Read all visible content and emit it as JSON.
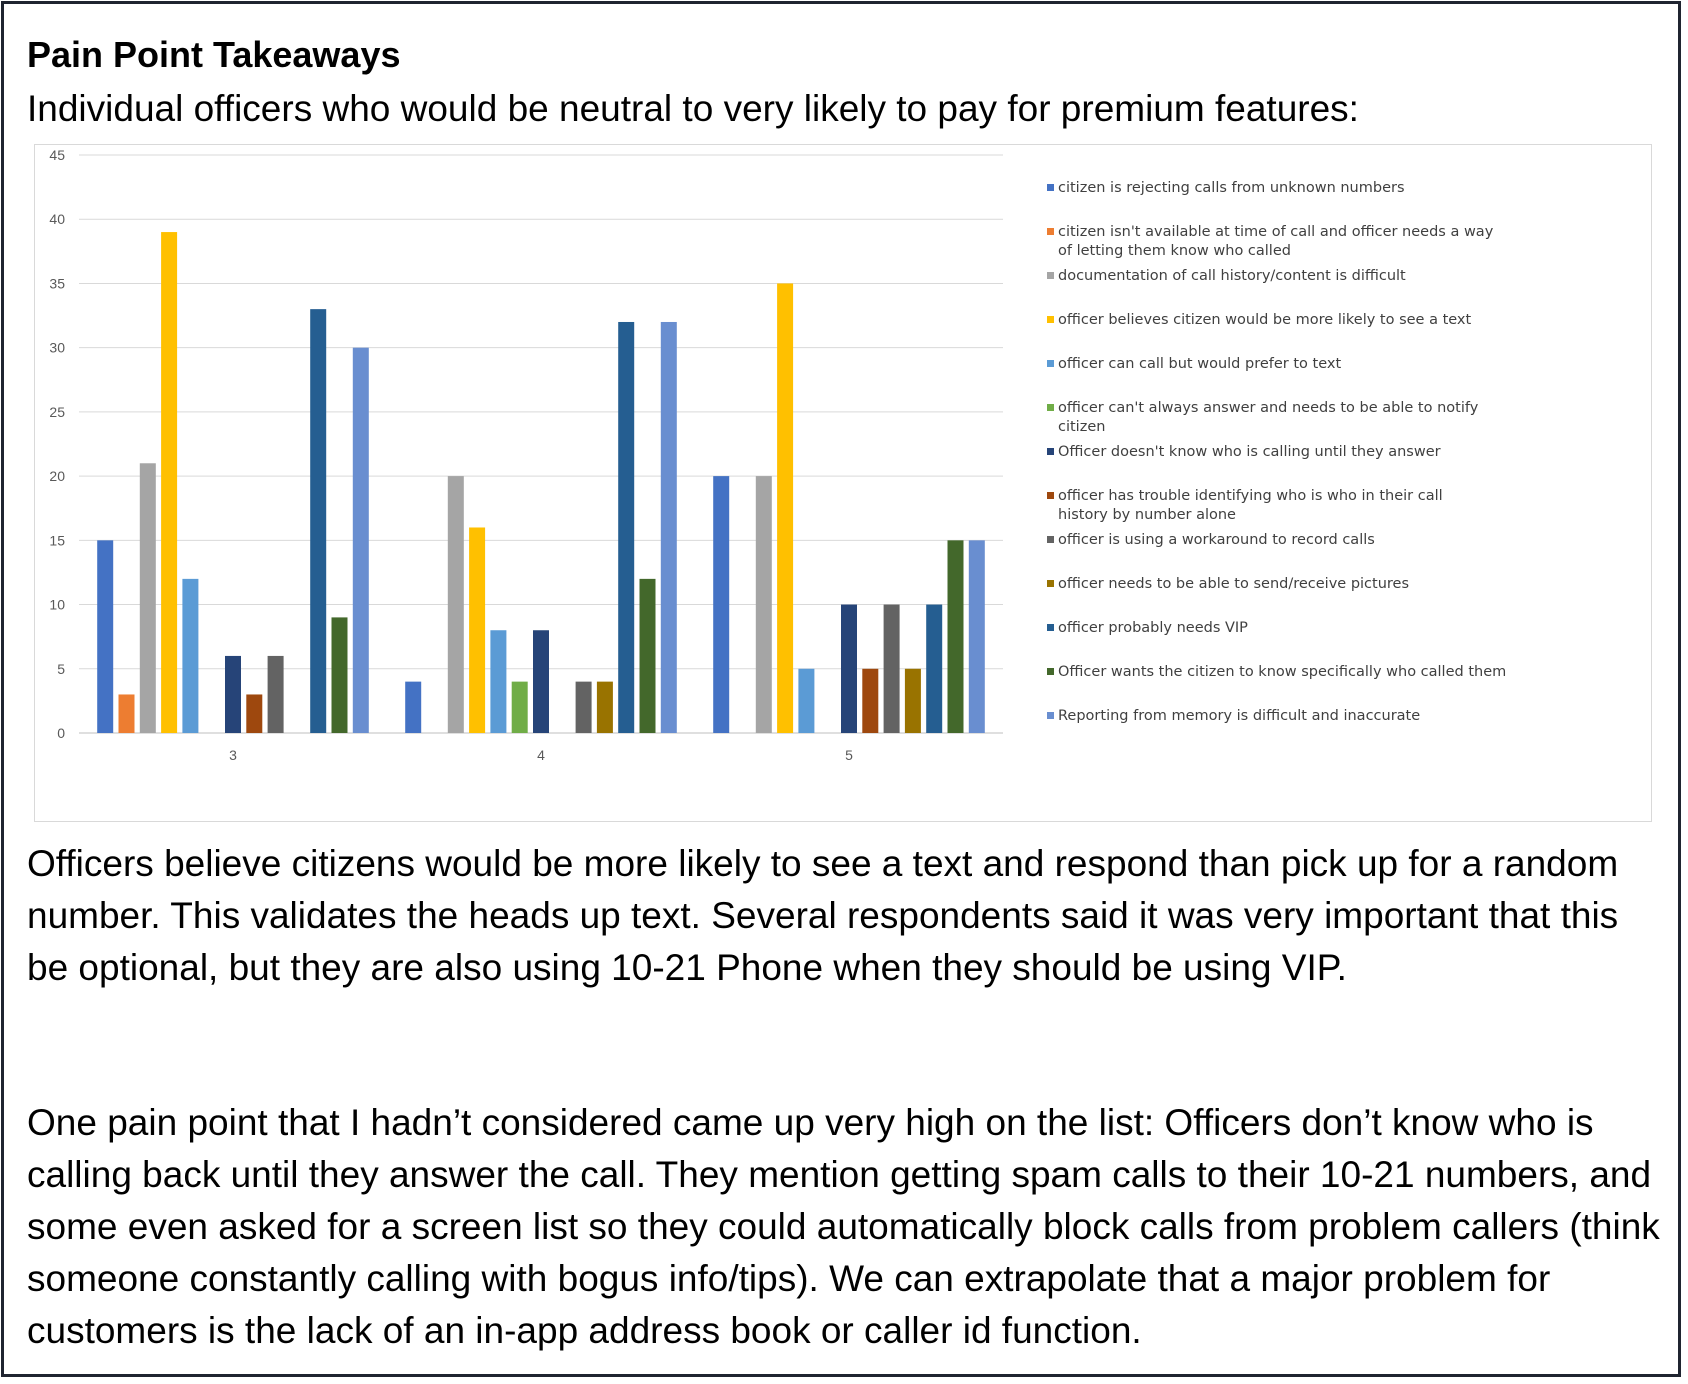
{
  "heading": "Pain Point Takeaways",
  "subheading": "Individual officers who would be neutral to very likely to pay for premium features:",
  "paragraphs": [
    "Officers believe citizens would be more likely to see a text and respond than pick up for a random number. This validates the heads up text. Several respondents said it was very important that this be optional, but they are also using 10-21 Phone when they should be using VIP.",
    "One pain point that I hadn’t considered came up very high on the list: Officers don’t know who is calling back until they answer the call. They mention getting spam calls to their 10-21 numbers, and some even asked for a screen list so they could automatically block calls from problem callers (think someone constantly calling with bogus info/tips). We can extrapolate that a major problem for customers is the lack of an in-app address book or caller id function."
  ],
  "chart_data": {
    "type": "bar",
    "title": "",
    "xlabel": "",
    "ylabel": "",
    "categories": [
      "3",
      "4",
      "5"
    ],
    "ylim": [
      0,
      45
    ],
    "yticks": [
      0,
      5,
      10,
      15,
      20,
      25,
      30,
      35,
      40,
      45
    ],
    "grid": true,
    "legend_position": "right",
    "series": [
      {
        "name": "citizen is rejecting calls from unknown numbers",
        "color": "#4472C4",
        "values": [
          15,
          4,
          20
        ]
      },
      {
        "name": "citizen isn't available at time of call and officer needs a way of letting them know who called",
        "color": "#ED7D31",
        "values": [
          3,
          0,
          0
        ]
      },
      {
        "name": "documentation of call history/content is difficult",
        "color": "#A5A5A5",
        "values": [
          21,
          20,
          20
        ]
      },
      {
        "name": "officer believes citizen would be more likely to see a text",
        "color": "#FFC000",
        "values": [
          39,
          16,
          35
        ]
      },
      {
        "name": "officer can call but would prefer to text",
        "color": "#5B9BD5",
        "values": [
          12,
          8,
          5
        ]
      },
      {
        "name": "officer can't always answer and needs to be able to notify citizen",
        "color": "#70AD47",
        "values": [
          0,
          4,
          0
        ]
      },
      {
        "name": "Officer doesn't know who is calling until they answer",
        "color": "#264478",
        "values": [
          6,
          8,
          10
        ]
      },
      {
        "name": "officer has trouble identifying who is who in their call history by number alone",
        "color": "#9E480E",
        "values": [
          3,
          0,
          5
        ]
      },
      {
        "name": "officer is using a workaround to record calls",
        "color": "#636363",
        "values": [
          6,
          4,
          10
        ]
      },
      {
        "name": "officer needs to be able to send/receive pictures",
        "color": "#997300",
        "values": [
          0,
          4,
          5
        ]
      },
      {
        "name": "officer probably needs VIP",
        "color": "#255E91",
        "values": [
          33,
          32,
          10
        ]
      },
      {
        "name": "Officer wants the citizen to know specifically who called them",
        "color": "#43682B",
        "values": [
          9,
          12,
          15
        ]
      },
      {
        "name": "Reporting from memory is difficult and inaccurate",
        "color": "#698ED0",
        "values": [
          30,
          32,
          15
        ]
      }
    ]
  }
}
